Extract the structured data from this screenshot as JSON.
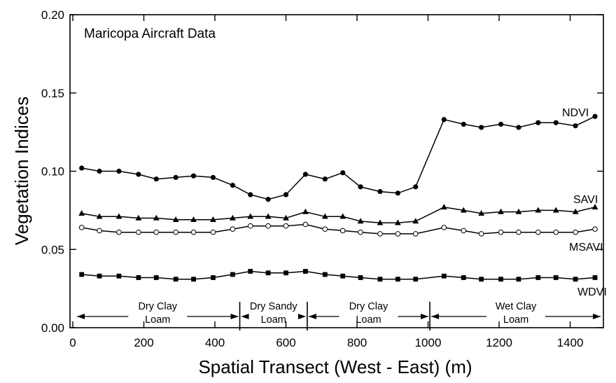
{
  "chart_data": {
    "type": "line",
    "title": "Maricopa Aircraft Data",
    "xlabel": "Spatial Transect (West - East) (m)",
    "ylabel": "Vegetation Indices",
    "xlim": [
      0,
      1500
    ],
    "ylim": [
      0.0,
      0.2
    ],
    "xticks": [
      0,
      200,
      400,
      600,
      800,
      1000,
      1200,
      1400
    ],
    "xtick_labels": [
      "0",
      "200",
      "400",
      "600",
      "800",
      "1000",
      "1200",
      "1400"
    ],
    "yticks": [
      0.0,
      0.05,
      0.1,
      0.15,
      0.2
    ],
    "ytick_labels": [
      "0.00",
      "0.05",
      "0.10",
      "0.15",
      "0.20"
    ],
    "grid": false,
    "x": [
      25,
      75,
      130,
      185,
      235,
      290,
      340,
      395,
      450,
      500,
      550,
      600,
      655,
      710,
      760,
      810,
      865,
      915,
      965,
      1045,
      1100,
      1150,
      1205,
      1255,
      1310,
      1360,
      1415,
      1470
    ],
    "series": [
      {
        "name": "NDVI",
        "marker": "filled-circle",
        "values": [
          0.102,
          0.1,
          0.1,
          0.098,
          0.095,
          0.096,
          0.097,
          0.096,
          0.091,
          0.085,
          0.082,
          0.085,
          0.098,
          0.095,
          0.099,
          0.09,
          0.087,
          0.086,
          0.09,
          0.133,
          0.13,
          0.128,
          0.13,
          0.128,
          0.131,
          0.131,
          0.129,
          0.135
        ]
      },
      {
        "name": "SAVI",
        "marker": "filled-triangle",
        "values": [
          0.073,
          0.071,
          0.071,
          0.07,
          0.07,
          0.069,
          0.069,
          0.069,
          0.07,
          0.071,
          0.071,
          0.07,
          0.074,
          0.071,
          0.071,
          0.068,
          0.067,
          0.067,
          0.068,
          0.077,
          0.075,
          0.073,
          0.074,
          0.074,
          0.075,
          0.075,
          0.074,
          0.077
        ]
      },
      {
        "name": "MSAVI",
        "marker": "open-circle",
        "values": [
          0.064,
          0.062,
          0.061,
          0.061,
          0.061,
          0.061,
          0.061,
          0.061,
          0.063,
          0.065,
          0.065,
          0.065,
          0.066,
          0.063,
          0.062,
          0.061,
          0.06,
          0.06,
          0.06,
          0.064,
          0.062,
          0.06,
          0.061,
          0.061,
          0.061,
          0.061,
          0.061,
          0.063
        ]
      },
      {
        "name": "WDVI",
        "marker": "filled-square",
        "values": [
          0.034,
          0.033,
          0.033,
          0.032,
          0.032,
          0.031,
          0.031,
          0.032,
          0.034,
          0.036,
          0.035,
          0.035,
          0.036,
          0.034,
          0.033,
          0.032,
          0.031,
          0.031,
          0.031,
          0.033,
          0.032,
          0.031,
          0.031,
          0.031,
          0.032,
          0.032,
          0.031,
          0.032
        ]
      }
    ],
    "region_boundaries": [
      0,
      470,
      660,
      1005,
      1500
    ],
    "regions": [
      {
        "lines": [
          "Dry Clay",
          "Loam"
        ]
      },
      {
        "lines": [
          "Dry Sandy",
          "Loam"
        ]
      },
      {
        "lines": [
          "Dry Clay",
          "Loam"
        ]
      },
      {
        "lines": [
          "Wet Clay",
          "Loam"
        ]
      }
    ]
  }
}
